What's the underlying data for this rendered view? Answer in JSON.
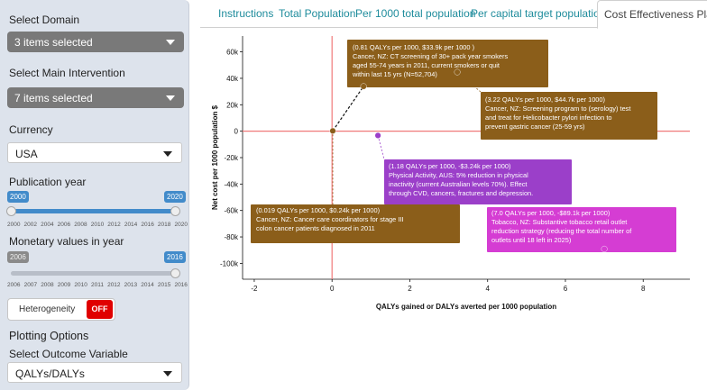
{
  "sidebar": {
    "domain_label": "Select Domain",
    "domain_value": "3 items selected",
    "intervention_label": "Select Main Intervention",
    "intervention_value": "7 items selected",
    "currency_label": "Currency",
    "currency_value": "USA",
    "pubyear_label": "Publication year",
    "pubyear_min": "2000",
    "pubyear_max": "2020",
    "pubyear_ticks": [
      "2000",
      "2002",
      "2004",
      "2006",
      "2008",
      "2010",
      "2012",
      "2014",
      "2016",
      "2018",
      "2020"
    ],
    "monetary_label": "Monetary values in year",
    "monetary_min": "2006",
    "monetary_max": "2016",
    "monetary_ticks": [
      "2006",
      "2007",
      "2008",
      "2009",
      "2010",
      "2011",
      "2012",
      "2013",
      "2014",
      "2015",
      "2016"
    ],
    "heterogeneity_label": "Heterogeneity",
    "heterogeneity_state": "OFF",
    "plotting_title": "Plotting Options",
    "outcome_label": "Select Outcome Variable",
    "outcome_value": "QALYs/DALYs"
  },
  "tabs": [
    "Instructions",
    "Total Population",
    "Per 1000 total population",
    "Per capital target population",
    "Cost Effectiveness Plane"
  ],
  "active_tab": 4,
  "colors": {
    "accent": "#1f8c9c",
    "axis_zero": "#f07a7a",
    "cancer": "#8b5e1a",
    "physical_activity": "#9b3fc9",
    "tobacco": "#d53dd3",
    "toggle_off": "#e00000",
    "slider": "#428bca"
  },
  "chart_data": {
    "type": "scatter",
    "xlabel": "QALYs gained or DALYs averted per 1000 population",
    "ylabel": "Net cost per 1000 population $",
    "xlim": [
      -2.3,
      9.2
    ],
    "ylim": [
      -112,
      72
    ],
    "xticks": [
      -2,
      0,
      2,
      4,
      6,
      8
    ],
    "yticks": [
      60,
      40,
      20,
      0,
      -20,
      -40,
      -60,
      -80,
      -100
    ],
    "ytick_labels": [
      "60k",
      "40k",
      "20k",
      "0",
      "-20k",
      "-40k",
      "-60k",
      "-80k",
      "-100k"
    ],
    "grid": false,
    "points": [
      {
        "x": 0.019,
        "y": 0.24,
        "color": "#8b5e1a",
        "label": [
          "(0.019 QALYs per 1000, $0.24k per 1000)",
          "Cancer, NZ: Cancer care coordinators for stage III",
          "colon cancer patients diagnosed in 2011"
        ]
      },
      {
        "x": 0.81,
        "y": 33.9,
        "color": "#8b5e1a",
        "label": [
          "(0.81 QALYs per 1000, $33.9k per 1000 )",
          "Cancer, NZ: CT screening of 30+ pack year smokers",
          "aged 55-74 years in 2011, current smokers or quit",
          "within last 15 yrs (N=52,704)"
        ]
      },
      {
        "x": 3.22,
        "y": 44.7,
        "color": "#8b5e1a",
        "label": [
          "(3.22 QALYs per 1000, $44.7k per 1000)",
          "Cancer, NZ: Screening program to (serology) test",
          "and treat for Helicobacter pylori infection to",
          "prevent gastric cancer (25-59 yrs)"
        ]
      },
      {
        "x": 1.18,
        "y": -3.24,
        "color": "#9b3fc9",
        "label": [
          "(1.18 QALYs per 1000, -$3.24k per 1000)",
          "Physical Activity, AUS: 5% reduction in physical",
          "inactivity (current Australian levels 70%). Effect",
          "through CVD, cancers, fractures and depression."
        ]
      },
      {
        "x": 7.0,
        "y": -89.1,
        "color": "#d53dd3",
        "label": [
          "(7.0 QALYs per 1000, -$89.1k per 1000)",
          "Tobacco, NZ: Substantive tobacco retail outlet",
          "reduction strategy (reducing the total number of",
          "outlets until 18 left in 2025)"
        ]
      }
    ]
  }
}
